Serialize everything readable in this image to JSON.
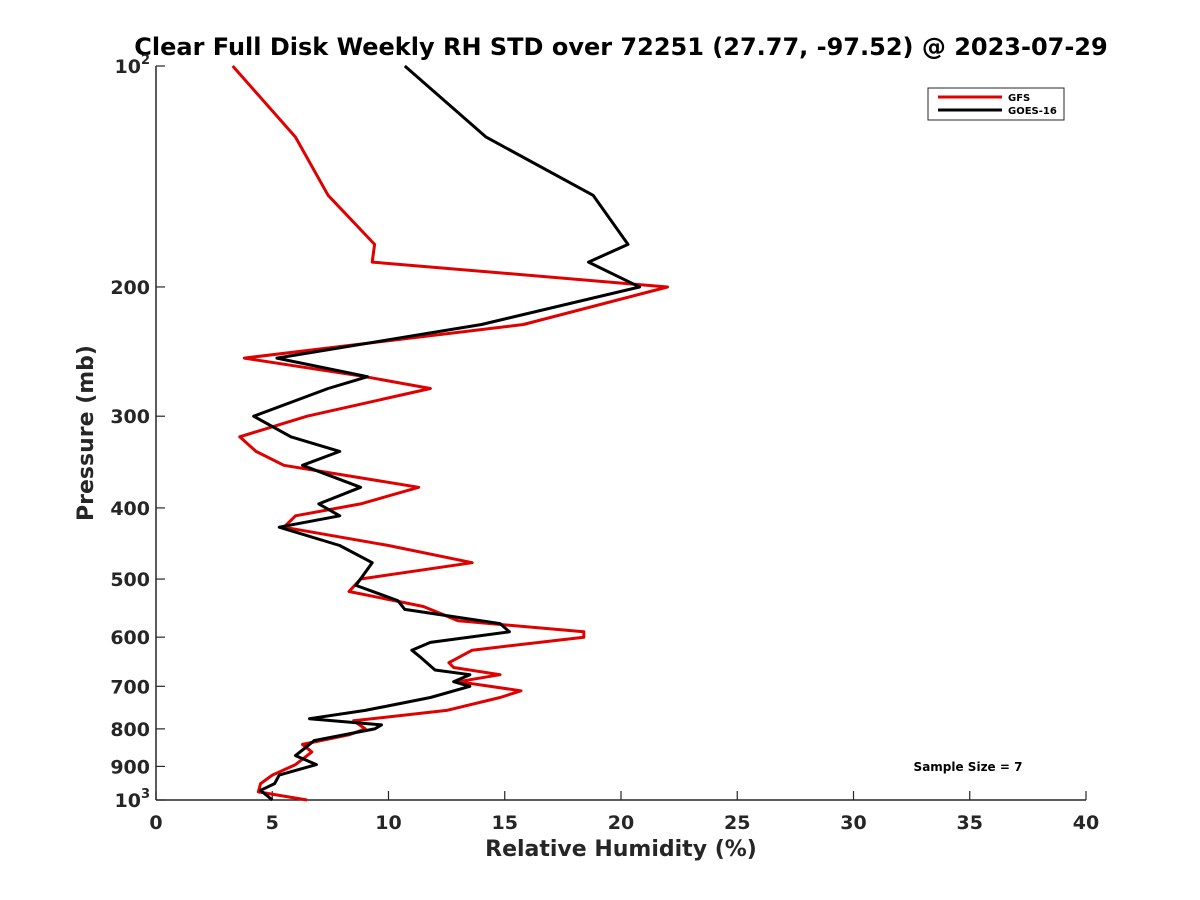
{
  "chart_data": {
    "type": "line",
    "title": "Clear Full Disk Weekly RH STD over 72251 (27.77, -97.52) @ 2023-07-29",
    "xlabel": "Relative Humidity (%)",
    "ylabel": "Pressure (mb)",
    "xlim": [
      0,
      40
    ],
    "ylim": [
      100,
      1000
    ],
    "yscale": "log",
    "y_reversed": true,
    "grid": false,
    "legend_position": "top-right",
    "x_ticks": [
      0,
      5,
      10,
      15,
      20,
      25,
      30,
      35,
      40
    ],
    "x_tick_labels": [
      "0",
      "5",
      "10",
      "15",
      "20",
      "25",
      "30",
      "35",
      "40"
    ],
    "y_ticks": [
      100,
      200,
      300,
      400,
      500,
      600,
      700,
      800,
      900,
      1000
    ],
    "y_tick_labels": [
      {
        "base": "10",
        "exp": "2"
      },
      {
        "base": "200",
        "exp": ""
      },
      {
        "base": "300",
        "exp": ""
      },
      {
        "base": "400",
        "exp": ""
      },
      {
        "base": "500",
        "exp": ""
      },
      {
        "base": "600",
        "exp": ""
      },
      {
        "base": "700",
        "exp": ""
      },
      {
        "base": "800",
        "exp": ""
      },
      {
        "base": "900",
        "exp": ""
      },
      {
        "base": "10",
        "exp": "3"
      }
    ],
    "annotation": "Sample Size = 7",
    "series": [
      {
        "name": "GFS",
        "color": "#e00000",
        "points": [
          [
            3.3,
            100
          ],
          [
            6.0,
            125
          ],
          [
            7.4,
            150
          ],
          [
            9.4,
            175
          ],
          [
            9.3,
            185
          ],
          [
            22.0,
            200
          ],
          [
            15.8,
            225
          ],
          [
            3.8,
            250
          ],
          [
            9.0,
            265
          ],
          [
            11.8,
            275
          ],
          [
            6.5,
            300
          ],
          [
            3.6,
            320
          ],
          [
            4.3,
            335
          ],
          [
            5.5,
            350
          ],
          [
            11.3,
            375
          ],
          [
            8.8,
            395
          ],
          [
            6.0,
            410
          ],
          [
            5.5,
            425
          ],
          [
            10.0,
            450
          ],
          [
            13.6,
            475
          ],
          [
            8.8,
            500
          ],
          [
            8.3,
            520
          ],
          [
            11.5,
            545
          ],
          [
            13.0,
            570
          ],
          [
            18.4,
            590
          ],
          [
            18.4,
            600
          ],
          [
            13.6,
            625
          ],
          [
            12.6,
            650
          ],
          [
            12.8,
            660
          ],
          [
            14.8,
            675
          ],
          [
            13.0,
            690
          ],
          [
            15.7,
            710
          ],
          [
            14.8,
            725
          ],
          [
            12.5,
            755
          ],
          [
            8.5,
            780
          ],
          [
            9.0,
            800
          ],
          [
            8.3,
            815
          ],
          [
            6.3,
            840
          ],
          [
            6.7,
            860
          ],
          [
            6.4,
            875
          ],
          [
            6.0,
            895
          ],
          [
            5.0,
            925
          ],
          [
            4.5,
            950
          ],
          [
            4.4,
            975
          ],
          [
            6.5,
            1000
          ]
        ]
      },
      {
        "name": "GOES-16",
        "color": "#000000",
        "points": [
          [
            10.7,
            100
          ],
          [
            14.2,
            125
          ],
          [
            18.8,
            150
          ],
          [
            20.3,
            175
          ],
          [
            18.6,
            185
          ],
          [
            20.8,
            200
          ],
          [
            14.0,
            225
          ],
          [
            5.2,
            250
          ],
          [
            9.1,
            265
          ],
          [
            7.4,
            275
          ],
          [
            4.2,
            300
          ],
          [
            5.8,
            320
          ],
          [
            7.9,
            335
          ],
          [
            6.3,
            350
          ],
          [
            8.8,
            375
          ],
          [
            7.0,
            395
          ],
          [
            7.9,
            410
          ],
          [
            5.3,
            425
          ],
          [
            7.9,
            450
          ],
          [
            9.3,
            475
          ],
          [
            8.6,
            510
          ],
          [
            10.4,
            535
          ],
          [
            10.7,
            550
          ],
          [
            14.8,
            575
          ],
          [
            15.2,
            590
          ],
          [
            11.8,
            610
          ],
          [
            11.0,
            625
          ],
          [
            11.4,
            640
          ],
          [
            12.0,
            665
          ],
          [
            13.5,
            675
          ],
          [
            12.8,
            690
          ],
          [
            13.5,
            700
          ],
          [
            11.8,
            725
          ],
          [
            9.0,
            755
          ],
          [
            6.6,
            775
          ],
          [
            9.7,
            790
          ],
          [
            9.4,
            800
          ],
          [
            6.8,
            830
          ],
          [
            6.4,
            850
          ],
          [
            6.0,
            870
          ],
          [
            6.9,
            895
          ],
          [
            5.3,
            925
          ],
          [
            5.1,
            950
          ],
          [
            4.5,
            970
          ],
          [
            5.0,
            1000
          ]
        ]
      }
    ]
  }
}
